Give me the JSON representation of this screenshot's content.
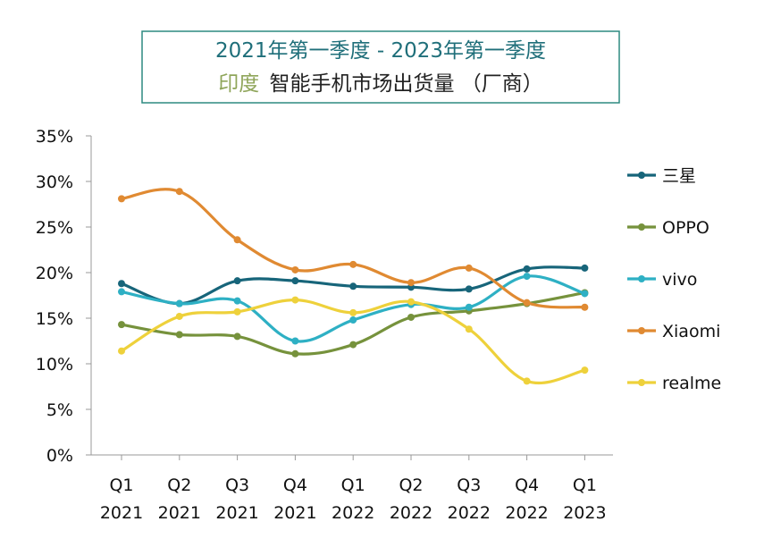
{
  "chart_data": {
    "type": "line",
    "title_line1": "2021年第一季度 - 2023年第一季度",
    "title_line2_highlight": "印度",
    "title_line2_rest": "智能手机市场出货量 （厂商）",
    "categories": [
      [
        "Q1",
        "2021"
      ],
      [
        "Q2",
        "2021"
      ],
      [
        "Q3",
        "2021"
      ],
      [
        "Q4",
        "2021"
      ],
      [
        "Q1",
        "2022"
      ],
      [
        "Q2",
        "2022"
      ],
      [
        "Q3",
        "2022"
      ],
      [
        "Q4",
        "2022"
      ],
      [
        "Q1",
        "2023"
      ]
    ],
    "y_ticks": [
      "0%",
      "5%",
      "10%",
      "15%",
      "20%",
      "25%",
      "30%",
      "35%"
    ],
    "ylim": [
      0,
      35
    ],
    "legend_position": "right",
    "series": [
      {
        "name": "三星",
        "color": "#17657a",
        "values": [
          18.8,
          16.6,
          19.1,
          19.1,
          18.5,
          18.4,
          18.2,
          20.4,
          20.5
        ]
      },
      {
        "name": "OPPO",
        "color": "#76923c",
        "values": [
          14.3,
          13.2,
          13.0,
          11.1,
          12.1,
          15.1,
          15.8,
          16.6,
          17.8
        ]
      },
      {
        "name": "vivo",
        "color": "#2eb0c4",
        "values": [
          17.9,
          16.6,
          16.9,
          12.5,
          14.8,
          16.5,
          16.2,
          19.6,
          17.7
        ]
      },
      {
        "name": "Xiaomi",
        "color": "#e08a32",
        "values": [
          28.1,
          28.9,
          23.6,
          20.3,
          20.9,
          18.9,
          20.5,
          16.7,
          16.2
        ]
      },
      {
        "name": "realme",
        "color": "#eed13b",
        "values": [
          11.4,
          15.2,
          15.7,
          17.0,
          15.6,
          16.8,
          13.8,
          8.1,
          9.3
        ]
      }
    ]
  }
}
